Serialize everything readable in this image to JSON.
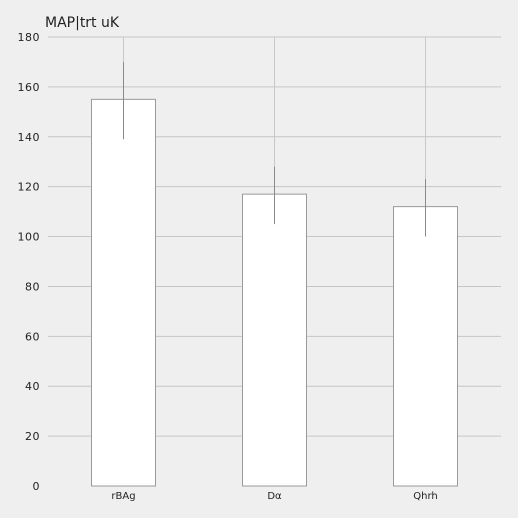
{
  "chart_data": {
    "type": "bar",
    "title": "MAP|trt uK",
    "xlabel": "",
    "ylabel": "",
    "categories": [
      "rBAg",
      "Dα",
      "Qhrh"
    ],
    "values": [
      155,
      117,
      112
    ],
    "error_low": [
      139,
      105,
      100
    ],
    "error_high": [
      170,
      128,
      123
    ],
    "whisker_top": [
      180,
      180,
      180
    ],
    "ylim": [
      0,
      180
    ],
    "yticks": [
      0,
      20,
      40,
      60,
      80,
      100,
      120,
      140,
      160,
      180
    ],
    "grid": true,
    "legend": "none",
    "colors": {
      "background": "#efefef",
      "bar_fill": "#ffffff",
      "bar_stroke": "#9a9a9a",
      "grid": "#c6c6c6",
      "error_bar": "#8a8a8a",
      "whisker": "#c8c8c8"
    }
  }
}
